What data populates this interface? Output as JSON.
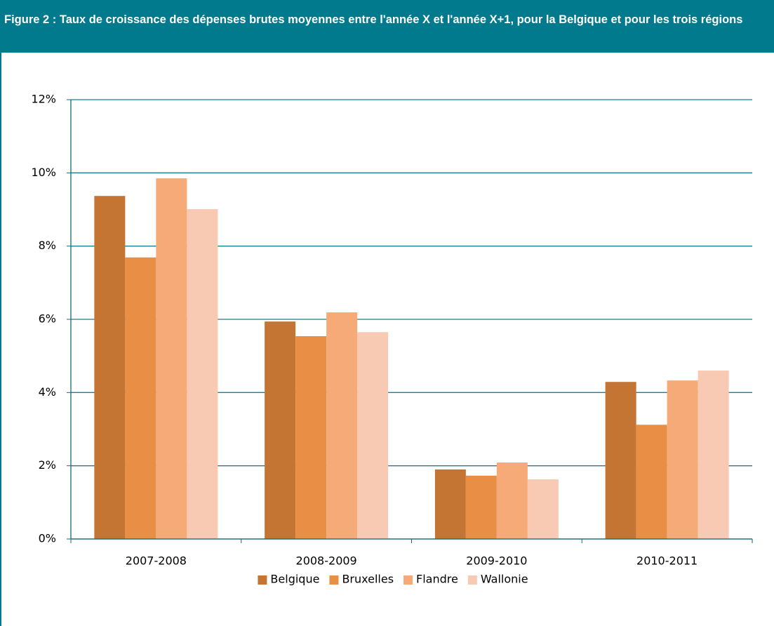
{
  "chart_data": {
    "type": "bar",
    "title": "Figure 2 :  Taux de croissance des dépenses brutes moyennes entre l'année X et l'année X+1, pour la Belgique et pour les trois régions",
    "categories": [
      "2007-2008",
      "2008-2009",
      "2009-2010",
      "2010-2011"
    ],
    "series": [
      {
        "name": "Belgique",
        "color": "#c47533",
        "values": [
          9.37,
          5.94,
          1.9,
          4.29
        ]
      },
      {
        "name": "Bruxelles",
        "color": "#e98f45",
        "values": [
          7.69,
          5.54,
          1.73,
          3.12
        ]
      },
      {
        "name": "Flandre",
        "color": "#f5aa78",
        "values": [
          9.85,
          6.19,
          2.09,
          4.33
        ]
      },
      {
        "name": "Wallonie",
        "color": "#f8cab3",
        "values": [
          9.01,
          5.65,
          1.63,
          4.6
        ]
      }
    ],
    "ylim": [
      0,
      12
    ],
    "yticks": [
      {
        "value": 0,
        "label": "0%"
      },
      {
        "value": 2,
        "label": "2%"
      },
      {
        "value": 4,
        "label": "4%"
      },
      {
        "value": 6,
        "label": "6%"
      },
      {
        "value": 8,
        "label": "8%"
      },
      {
        "value": 10,
        "label": "10%"
      },
      {
        "value": 12,
        "label": "12%"
      }
    ],
    "grid": true,
    "legend": "bottom"
  }
}
